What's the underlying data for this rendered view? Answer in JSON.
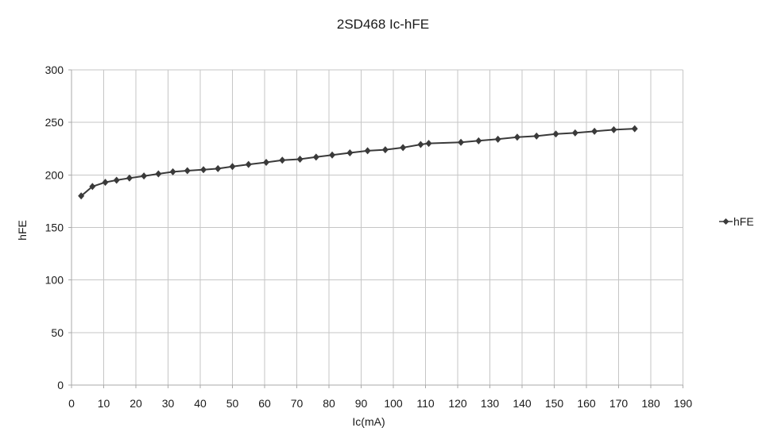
{
  "page": {
    "background": "#ffffff"
  },
  "chart_data": {
    "type": "line",
    "title": "2SD468 Ic-hFE",
    "xlabel": "Ic(mA)",
    "ylabel": "hFE",
    "legend_position": "right",
    "grid": true,
    "xlim": [
      0,
      190
    ],
    "x_tick_step": 10,
    "ylim": [
      0,
      300
    ],
    "y_tick_step": 50,
    "colors": {
      "grid": "#c6c6c6",
      "axis": "#a9a9a9",
      "text": "#1a1a1a",
      "series": "#3a3a3a"
    },
    "series": [
      {
        "name": "hFE",
        "color": "#3a3a3a",
        "marker": "diamond",
        "points": [
          [
            3,
            180
          ],
          [
            6.5,
            189
          ],
          [
            10.5,
            193
          ],
          [
            14,
            195
          ],
          [
            18,
            197
          ],
          [
            22.5,
            199
          ],
          [
            27,
            201
          ],
          [
            31.5,
            203
          ],
          [
            36,
            204
          ],
          [
            41,
            205
          ],
          [
            45.5,
            206
          ],
          [
            50,
            208
          ],
          [
            55,
            210
          ],
          [
            60.5,
            212
          ],
          [
            65.5,
            214
          ],
          [
            71,
            215
          ],
          [
            76,
            217
          ],
          [
            81,
            219
          ],
          [
            86.5,
            221
          ],
          [
            92,
            223
          ],
          [
            97.5,
            224
          ],
          [
            103,
            226
          ],
          [
            108.5,
            229
          ],
          [
            111,
            230
          ],
          [
            121,
            231
          ],
          [
            126.5,
            232.5
          ],
          [
            132.5,
            234
          ],
          [
            138.5,
            236
          ],
          [
            144.5,
            237
          ],
          [
            150.5,
            239
          ],
          [
            156.5,
            240
          ],
          [
            162.5,
            241.5
          ],
          [
            168.5,
            243
          ],
          [
            175,
            244
          ]
        ]
      }
    ]
  }
}
